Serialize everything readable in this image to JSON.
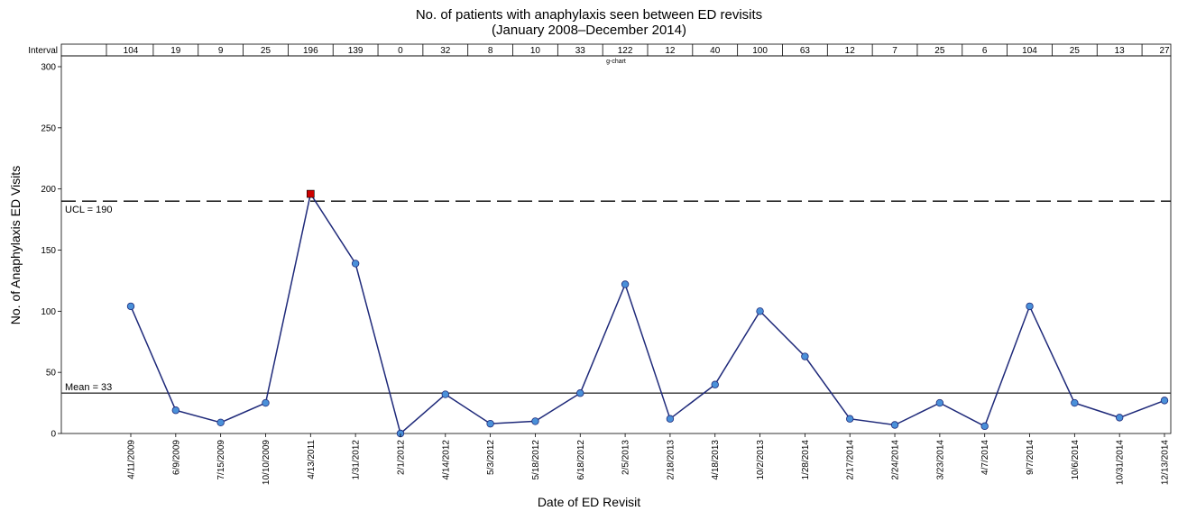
{
  "chart_data": {
    "type": "line",
    "title": "No. of patients with anaphylaxis seen between ED revisits",
    "subtitle": "(January 2008–December 2014)",
    "chart_tag": "g-chart",
    "xlabel": "Date of ED Revisit",
    "ylabel": "No. of Anaphylaxis ED Visits",
    "ylim": [
      0,
      300
    ],
    "yticks": [
      0,
      50,
      100,
      150,
      200,
      250,
      300
    ],
    "interval_header": "Interval",
    "categories": [
      "4/11/2009",
      "6/9/2009",
      "7/15/2009",
      "10/10/2009",
      "4/13/2011",
      "1/31/2012",
      "2/1/2012",
      "4/14/2012",
      "5/3/2012",
      "5/18/2012",
      "6/18/2012",
      "2/5/2013",
      "2/18/2013",
      "4/18/2013",
      "10/2/2013",
      "1/28/2014",
      "2/17/2014",
      "2/24/2014",
      "3/23/2014",
      "4/7/2014",
      "9/7/2014",
      "10/6/2014",
      "10/31/2014",
      "12/13/2014"
    ],
    "values": [
      104,
      19,
      9,
      25,
      196,
      139,
      0,
      32,
      8,
      10,
      33,
      122,
      12,
      40,
      100,
      63,
      12,
      7,
      25,
      6,
      104,
      25,
      13,
      27
    ],
    "out_of_control_index": 4,
    "ucl": {
      "label": "UCL = 190",
      "value": 190
    },
    "mean": {
      "label": "Mean = 33",
      "value": 33
    },
    "colors": {
      "line": "#1f2a7a",
      "point": "#4a90d9",
      "out_of_control": "#cc0000"
    }
  }
}
